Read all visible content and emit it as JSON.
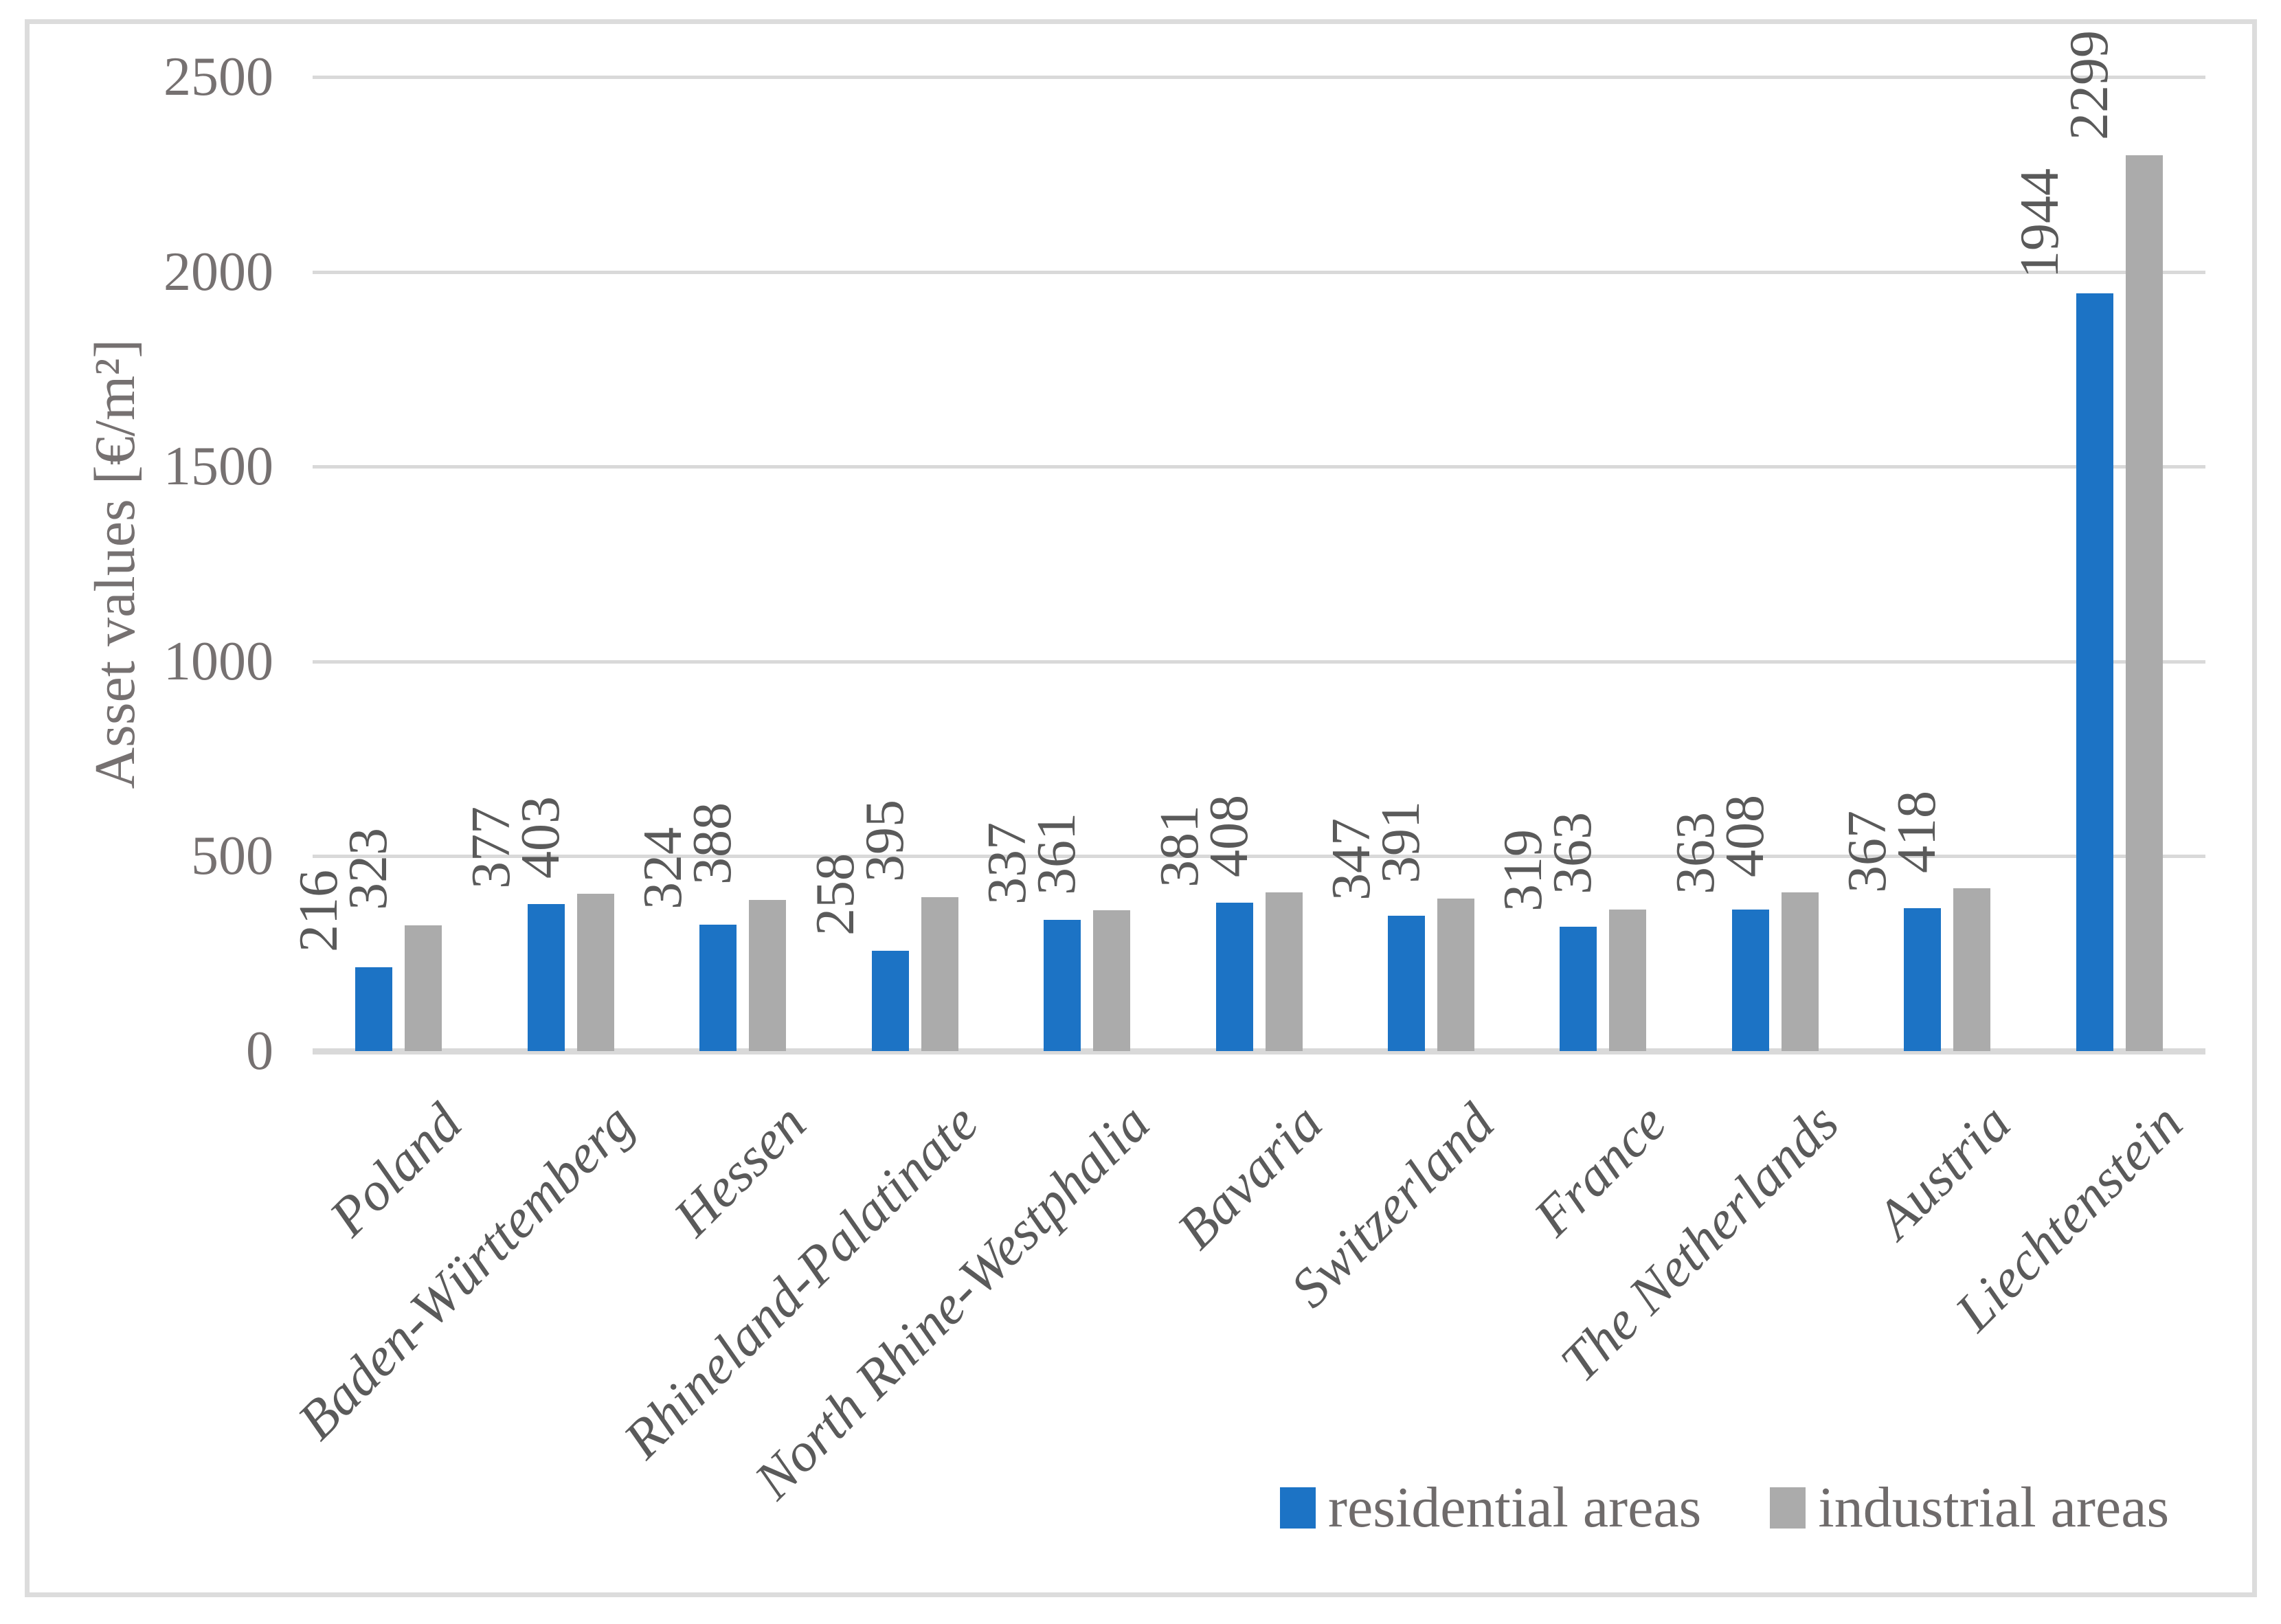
{
  "figure": {
    "background_color": "#ffffff",
    "border_color": "#dcdcdc",
    "grid_color": "#d9d9d9",
    "tick_text_color": "#767171",
    "label_text_color": "#5a5a5a",
    "legend_text_color": "#6f6b6b"
  },
  "chart_data": {
    "type": "bar",
    "title": "",
    "xlabel": "",
    "ylabel": "Asset values [€/m²]",
    "ylim": [
      0,
      2500
    ],
    "yticks": [
      0,
      500,
      1000,
      1500,
      2000,
      2500
    ],
    "grid": true,
    "bar_value_labels_rotation": 90,
    "category_labels_rotation": 45,
    "legend_position": "bottom-right",
    "categories": [
      "Poland",
      "Baden-Württemberg",
      "Hessen",
      "Rhineland-Palatinate",
      "North Rhine-Westphalia",
      "Bavaria",
      "Switzerland",
      "France",
      "The Netherlands",
      "Austria",
      "Liechtenstein"
    ],
    "series": [
      {
        "name": "residential areas",
        "color": "#1c73c5",
        "values": [
          216,
          377,
          324,
          258,
          337,
          381,
          347,
          319,
          363,
          367,
          1944
        ]
      },
      {
        "name": "industrial areas",
        "color": "#ababab",
        "values": [
          323,
          403,
          388,
          395,
          361,
          408,
          391,
          363,
          408,
          418,
          2299
        ]
      }
    ]
  }
}
